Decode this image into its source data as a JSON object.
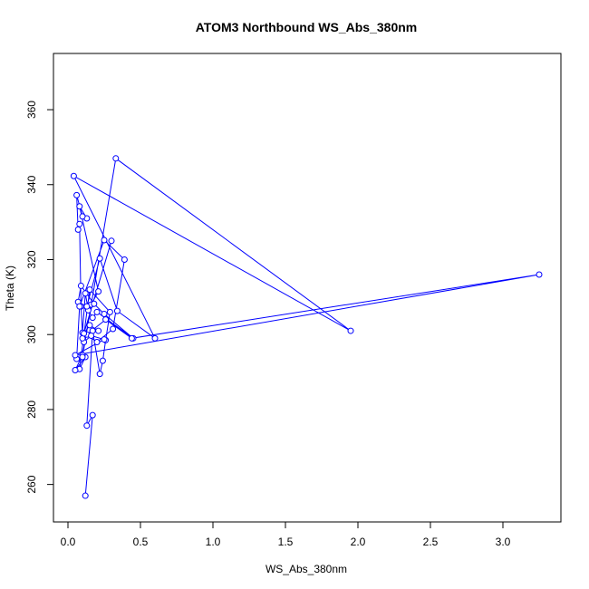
{
  "chart_data": {
    "type": "line",
    "title": "ATOM3 Northbound WS_Abs_380nm",
    "xlabel": "WS_Abs_380nm",
    "ylabel": "Theta (K)",
    "xlim": [
      -0.1,
      3.4
    ],
    "ylim": [
      250,
      375
    ],
    "x_ticks": [
      "0.0",
      "0.5",
      "1.0",
      "1.5",
      "2.0",
      "2.5",
      "3.0"
    ],
    "x_tick_values": [
      0,
      0.5,
      1.0,
      1.5,
      2.0,
      2.5,
      3.0
    ],
    "y_ticks": [
      "260",
      "280",
      "300",
      "320",
      "340",
      "360"
    ],
    "y_tick_values": [
      260,
      280,
      300,
      320,
      340,
      360
    ],
    "grid": false,
    "legend": "none",
    "series_color": "#0000ff",
    "marker": "open-circle",
    "series": [
      {
        "x": [
          0.12,
          0.17,
          0.13,
          0.17,
          0.22,
          0.24,
          0.26,
          0.29,
          0.15,
          0.08,
          0.12,
          0.05,
          0.1,
          0.16,
          0.21,
          0.08,
          0.13,
          0.1,
          0.06,
          0.07,
          0.08,
          0.09,
          0.1,
          0.12,
          0.14,
          0.17,
          0.2,
          0.45,
          0.25,
          0.18,
          0.09,
          0.07,
          0.13,
          0.22,
          0.34,
          0.6,
          0.04,
          1.95,
          0.33,
          0.1,
          0.06,
          0.08,
          0.25,
          0.39,
          0.31,
          0.2,
          0.13,
          0.26,
          0.44,
          3.25,
          0.05,
          0.25,
          0.16,
          0.11,
          0.1,
          0.3,
          0.11,
          0.15,
          0.21
        ],
        "y": [
          257.0,
          278.5,
          275.7,
          301.0,
          289.5,
          293.0,
          298.5,
          306.0,
          312.0,
          290.8,
          294.0,
          290.5,
          294.5,
          308.0,
          311.5,
          334.2,
          331.0,
          331.5,
          337.2,
          328.0,
          329.5,
          307.5,
          300.5,
          311.0,
          306.5,
          304.5,
          306.0,
          299.0,
          305.5,
          308.2,
          313.0,
          308.7,
          307.5,
          320.3,
          306.3,
          299.0,
          342.3,
          301.0,
          347.0,
          294.0,
          293.5,
          307.5,
          325.2,
          320.0,
          301.5,
          298.0,
          300.0,
          304.0,
          299.0,
          316.0,
          294.5,
          298.7,
          299.7,
          298.0,
          299.0,
          325.0,
          300.3,
          302.5,
          301.0
        ]
      }
    ]
  }
}
